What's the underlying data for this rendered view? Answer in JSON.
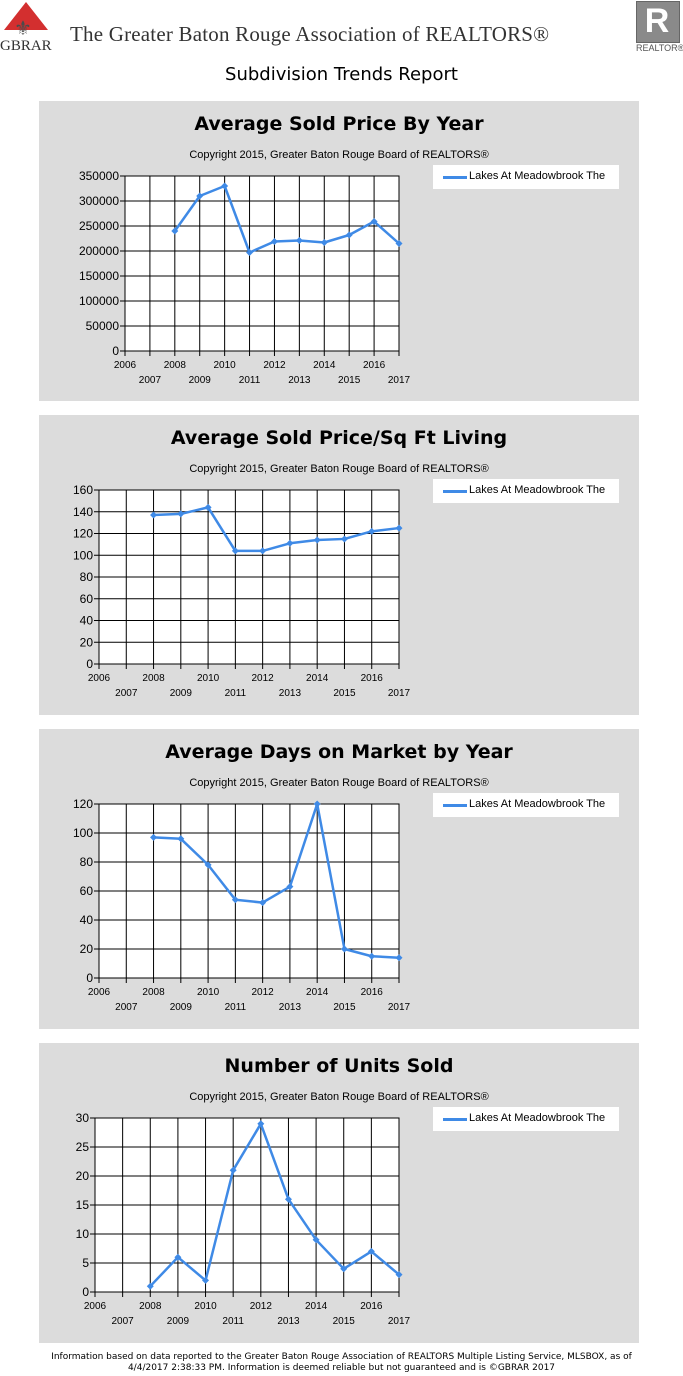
{
  "header": {
    "gbrar_logo_text": "GBRAR",
    "association_name": "The Greater Baton Rouge Association of REALTORS®",
    "realtor_logo_letter": "R",
    "realtor_logo_label": "REALTOR®"
  },
  "report_title": "Subdivision Trends Report",
  "copyright": "Copyright 2015, Greater Baton Rouge Board of REALTORS®",
  "series_color": "#3f8ae6",
  "chart_data": [
    {
      "type": "line",
      "title": "Average Sold Price By Year",
      "subtitle": "Copyright 2015, Greater Baton Rouge Board of REALTORS®",
      "x_ticks": [
        2006,
        2007,
        2008,
        2009,
        2010,
        2011,
        2012,
        2013,
        2014,
        2015,
        2016,
        2017
      ],
      "y_ticks": [
        0,
        50000,
        100000,
        150000,
        200000,
        250000,
        300000,
        350000
      ],
      "ylim": [
        0,
        350000
      ],
      "grid": true,
      "legend": "top-right",
      "series": [
        {
          "name": "Lakes At Meadowbrook The",
          "x": [
            2008,
            2009,
            2010,
            2011,
            2012,
            2013,
            2014,
            2015,
            2016,
            2017
          ],
          "values": [
            240000,
            310000,
            330000,
            197000,
            219000,
            221000,
            217000,
            232000,
            259000,
            215000
          ]
        }
      ]
    },
    {
      "type": "line",
      "title": "Average Sold Price/Sq Ft Living",
      "subtitle": "Copyright 2015, Greater Baton Rouge Board of REALTORS®",
      "x_ticks": [
        2006,
        2007,
        2008,
        2009,
        2010,
        2011,
        2012,
        2013,
        2014,
        2015,
        2016,
        2017
      ],
      "y_ticks": [
        0,
        20,
        40,
        60,
        80,
        100,
        120,
        140,
        160
      ],
      "ylim": [
        0,
        160
      ],
      "grid": true,
      "legend": "top-right",
      "series": [
        {
          "name": "Lakes At Meadowbrook The",
          "x": [
            2008,
            2009,
            2010,
            2011,
            2012,
            2013,
            2014,
            2015,
            2016,
            2017
          ],
          "values": [
            137,
            138,
            144,
            104,
            104,
            111,
            114,
            115,
            122,
            125
          ]
        }
      ]
    },
    {
      "type": "line",
      "title": "Average Days on Market by Year",
      "subtitle": "Copyright 2015, Greater Baton Rouge Board of REALTORS®",
      "x_ticks": [
        2006,
        2007,
        2008,
        2009,
        2010,
        2011,
        2012,
        2013,
        2014,
        2015,
        2016,
        2017
      ],
      "y_ticks": [
        0,
        20,
        40,
        60,
        80,
        100,
        120
      ],
      "ylim": [
        0,
        120
      ],
      "grid": true,
      "legend": "top-right",
      "series": [
        {
          "name": "Lakes At Meadowbrook The",
          "x": [
            2008,
            2009,
            2010,
            2011,
            2012,
            2013,
            2014,
            2015,
            2016,
            2017
          ],
          "values": [
            97,
            96,
            78,
            54,
            52,
            63,
            120,
            20,
            15,
            14
          ]
        }
      ]
    },
    {
      "type": "line",
      "title": "Number of Units Sold",
      "subtitle": "Copyright 2015, Greater Baton Rouge Board of REALTORS®",
      "x_ticks": [
        2006,
        2007,
        2008,
        2009,
        2010,
        2011,
        2012,
        2013,
        2014,
        2015,
        2016,
        2017
      ],
      "y_ticks": [
        0,
        5,
        10,
        15,
        20,
        25,
        30
      ],
      "ylim": [
        0,
        30
      ],
      "grid": true,
      "legend": "top-right",
      "series": [
        {
          "name": "Lakes At Meadowbrook The",
          "x": [
            2008,
            2009,
            2010,
            2011,
            2012,
            2013,
            2014,
            2015,
            2016,
            2017
          ],
          "values": [
            1,
            6,
            2,
            21,
            29,
            16,
            9,
            4,
            7,
            3
          ]
        }
      ]
    }
  ],
  "footer": {
    "line1": "Information based on data reported to the Greater Baton Rouge Association of REALTORS Multiple Listing Service, MLSBOX, as of",
    "line2": "4/4/2017 2:38:33 PM. Information is deemed reliable but not guaranteed and is ©GBRAR 2017"
  }
}
